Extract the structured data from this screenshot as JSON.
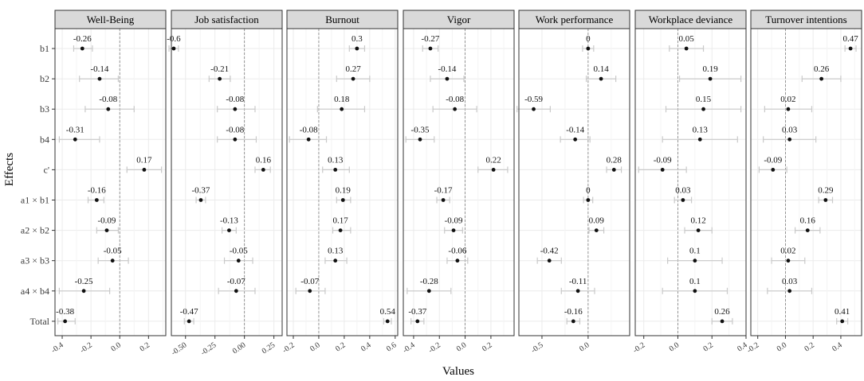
{
  "chart_data": {
    "type": "forest",
    "xlabel": "Values",
    "ylabel": "Effects",
    "effects": [
      "b1",
      "b2",
      "b3",
      "b4",
      "c'",
      "a1 × b1",
      "a2 × b2",
      "a3 × b3",
      "a4 × b4",
      "Total"
    ],
    "grid": true,
    "reference_line": 0,
    "panels": [
      {
        "title": "Well-Being",
        "xlim": [
          -0.45,
          0.32
        ],
        "xticks": [
          -0.4,
          -0.2,
          0.0,
          0.2
        ],
        "xtick_labels": [
          "-0.4",
          "-0.2",
          "0.0",
          "0.2"
        ],
        "values": [
          -0.26,
          -0.14,
          -0.08,
          -0.31,
          0.17,
          -0.16,
          -0.09,
          -0.05,
          -0.25,
          -0.38
        ],
        "labels": [
          "-0.26",
          "-0.14",
          "-0.08",
          "-0.31",
          "0.17",
          "-0.16",
          "-0.09",
          "-0.05",
          "-0.25",
          "-0.38"
        ],
        "lower": [
          -0.32,
          -0.28,
          -0.24,
          -0.42,
          0.05,
          -0.22,
          -0.16,
          -0.15,
          -0.42,
          -0.43
        ],
        "upper": [
          -0.19,
          -0.01,
          0.1,
          -0.14,
          0.29,
          -0.11,
          -0.01,
          0.06,
          -0.07,
          -0.31
        ]
      },
      {
        "title": "Job satisfaction",
        "xlim": [
          -0.62,
          0.32
        ],
        "xticks": [
          -0.5,
          -0.25,
          0.0,
          0.25
        ],
        "xtick_labels": [
          "-0.50",
          "-0.25",
          "0.00",
          "0.25"
        ],
        "values": [
          -0.6,
          -0.21,
          -0.08,
          -0.08,
          0.16,
          -0.37,
          -0.13,
          -0.05,
          -0.07,
          -0.47
        ],
        "labels": [
          "-0.6",
          "-0.21",
          "-0.08",
          "-0.08",
          "0.16",
          "-0.37",
          "-0.13",
          "-0.05",
          "-0.07",
          "-0.47"
        ],
        "lower": [
          -0.64,
          -0.3,
          -0.23,
          -0.23,
          0.09,
          -0.41,
          -0.19,
          -0.17,
          -0.22,
          -0.51
        ],
        "upper": [
          -0.56,
          -0.12,
          0.09,
          0.1,
          0.22,
          -0.33,
          -0.07,
          0.07,
          0.09,
          -0.43
        ]
      },
      {
        "title": "Burnout",
        "xlim": [
          -0.25,
          0.62
        ],
        "xticks": [
          -0.2,
          0.0,
          0.2,
          0.4,
          0.6
        ],
        "xtick_labels": [
          "-0.2",
          "0.0",
          "0.2",
          "0.4",
          "0.6"
        ],
        "values": [
          0.3,
          0.27,
          0.18,
          -0.08,
          0.13,
          0.19,
          0.17,
          0.13,
          -0.07,
          0.54
        ],
        "labels": [
          "0.3",
          "0.27",
          "0.18",
          "-0.08",
          "0.13",
          "0.19",
          "0.17",
          "0.13",
          "-0.07",
          "0.54"
        ],
        "lower": [
          0.24,
          0.14,
          -0.01,
          -0.23,
          0.03,
          0.14,
          0.11,
          0.05,
          -0.18,
          0.51
        ],
        "upper": [
          0.36,
          0.4,
          0.36,
          0.06,
          0.24,
          0.25,
          0.25,
          0.22,
          0.05,
          0.57
        ]
      },
      {
        "title": "Vigor",
        "xlim": [
          -0.48,
          0.38
        ],
        "xticks": [
          -0.4,
          -0.2,
          0.0,
          0.2
        ],
        "xtick_labels": [
          "-0.4",
          "-0.2",
          "0.0",
          "0.2"
        ],
        "values": [
          -0.27,
          -0.14,
          -0.08,
          -0.35,
          0.22,
          -0.17,
          -0.09,
          -0.06,
          -0.28,
          -0.37
        ],
        "labels": [
          "-0.27",
          "-0.14",
          "-0.08",
          "-0.35",
          "0.22",
          "-0.17",
          "-0.09",
          "-0.06",
          "-0.28",
          "-0.37"
        ],
        "lower": [
          -0.33,
          -0.27,
          -0.25,
          -0.46,
          0.1,
          -0.22,
          -0.16,
          -0.14,
          -0.45,
          -0.42
        ],
        "upper": [
          -0.21,
          -0.01,
          0.09,
          -0.24,
          0.33,
          -0.12,
          -0.02,
          0.02,
          -0.11,
          -0.32
        ]
      },
      {
        "title": "Work performance",
        "xlim": [
          -0.75,
          0.45
        ],
        "xticks": [
          -0.5,
          0.0
        ],
        "xtick_labels": [
          "-0.5",
          "0.0"
        ],
        "values": [
          0,
          0.14,
          -0.59,
          -0.14,
          0.28,
          0,
          0.09,
          -0.42,
          -0.11,
          -0.16
        ],
        "labels": [
          "0",
          "0.14",
          "-0.59",
          "-0.14",
          "0.28",
          "0",
          "0.09",
          "-0.42",
          "-0.11",
          "-0.16"
        ],
        "lower": [
          -0.06,
          -0.02,
          -0.77,
          -0.3,
          0.2,
          -0.05,
          0.01,
          -0.55,
          -0.29,
          -0.23
        ],
        "upper": [
          0.06,
          0.3,
          -0.41,
          0.02,
          0.36,
          0.05,
          0.17,
          -0.29,
          0.07,
          -0.09
        ]
      },
      {
        "title": "Workplace deviance",
        "xlim": [
          -0.25,
          0.4
        ],
        "xticks": [
          -0.2,
          0.0,
          0.2,
          0.4
        ],
        "xtick_labels": [
          "-0.2",
          "0.0",
          "0.2",
          "0.4"
        ],
        "values": [
          0.05,
          0.19,
          0.15,
          0.13,
          -0.09,
          0.03,
          0.12,
          0.1,
          0.1,
          0.26
        ],
        "labels": [
          "0.05",
          "0.19",
          "0.15",
          "0.13",
          "-0.09",
          "0.03",
          "0.12",
          "0.1",
          "0.1",
          "0.26"
        ],
        "lower": [
          -0.05,
          0.01,
          -0.07,
          -0.09,
          -0.23,
          -0.02,
          0.04,
          -0.06,
          -0.09,
          0.2
        ],
        "upper": [
          0.15,
          0.37,
          0.37,
          0.35,
          0.05,
          0.08,
          0.2,
          0.26,
          0.29,
          0.32
        ]
      },
      {
        "title": "Turnover intentions",
        "xlim": [
          -0.25,
          0.55
        ],
        "xticks": [
          -0.2,
          0.0,
          0.2,
          0.4
        ],
        "xtick_labels": [
          "-0.2",
          "0.0",
          "0.2",
          "0.4"
        ],
        "values": [
          0.47,
          0.26,
          0.02,
          0.03,
          -0.09,
          0.29,
          0.16,
          0.02,
          0.03,
          0.41
        ],
        "labels": [
          "0.47",
          "0.26",
          "0.02",
          "0.03",
          "-0.09",
          "0.29",
          "0.16",
          "0.02",
          "0.03",
          "0.41"
        ],
        "lower": [
          0.43,
          0.12,
          -0.15,
          -0.16,
          -0.19,
          0.24,
          0.07,
          -0.1,
          -0.13,
          0.37
        ],
        "upper": [
          0.51,
          0.4,
          0.19,
          0.22,
          0.01,
          0.34,
          0.25,
          0.14,
          0.19,
          0.45
        ]
      }
    ]
  }
}
